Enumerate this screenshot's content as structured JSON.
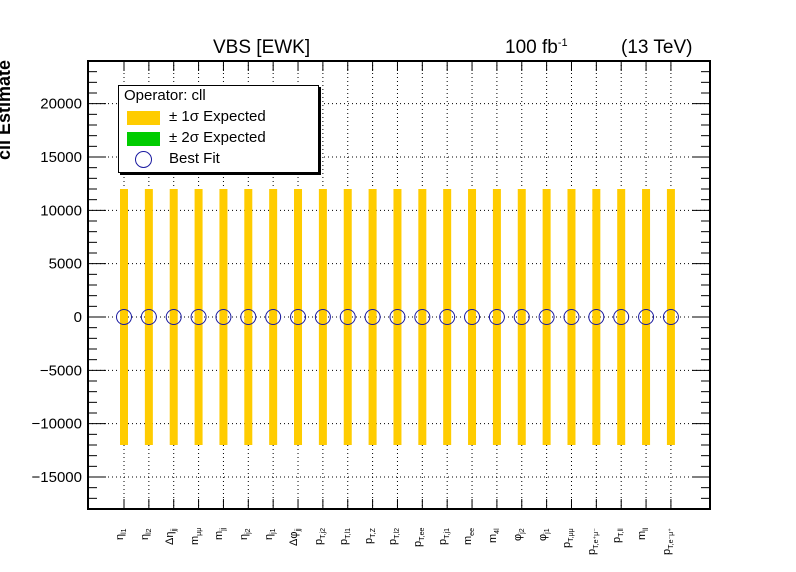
{
  "header": {
    "title_left": "VBS [EWK]",
    "lumi_value": "100 fb",
    "lumi_exp": "-1",
    "energy": "(13 TeV)"
  },
  "legend": {
    "title": "Operator: cll",
    "items": [
      {
        "label": "± 1σ Expected",
        "color": "#ffcc00"
      },
      {
        "label": "± 2σ Expected",
        "color": "#00cc00"
      },
      {
        "label": "Best Fit",
        "color": "#1a1aa0"
      }
    ]
  },
  "chart_data": {
    "type": "scatter",
    "title": "VBS [EWK]",
    "ylabel": "cll Estimate",
    "xlabel": "",
    "ylim": [
      -18000,
      24000
    ],
    "yticks": [
      -15000,
      -10000,
      -5000,
      0,
      5000,
      10000,
      15000,
      20000
    ],
    "ytick_labels": [
      "−15000",
      "−10000",
      "−5000",
      "0",
      "5000",
      "10000",
      "15000",
      "20000"
    ],
    "grid": true,
    "legend_position": "top-left",
    "categories": [
      {
        "main": "η",
        "sub": "l1"
      },
      {
        "main": "η",
        "sub": "l2"
      },
      {
        "main": "Δη",
        "sub": "jj"
      },
      {
        "main": "m",
        "sub": "μμ"
      },
      {
        "main": "m",
        "sub": "jj"
      },
      {
        "main": "η",
        "sub": "j2"
      },
      {
        "main": "η",
        "sub": "j1"
      },
      {
        "main": "Δφ",
        "sub": "jj"
      },
      {
        "main": "p",
        "sub": "T,j2"
      },
      {
        "main": "p",
        "sub": "T,l1"
      },
      {
        "main": "p",
        "sub": "T,Z"
      },
      {
        "main": "p",
        "sub": "T,l2"
      },
      {
        "main": "p",
        "sub": "T,ee"
      },
      {
        "main": "p",
        "sub": "T,j1"
      },
      {
        "main": "m",
        "sub": "ee"
      },
      {
        "main": "m",
        "sub": "4l"
      },
      {
        "main": "φ",
        "sub": "j2"
      },
      {
        "main": "φ",
        "sub": "j1"
      },
      {
        "main": "p",
        "sub": "T,μμ"
      },
      {
        "main": "p",
        "sub": "T,e⁺μ⁻"
      },
      {
        "main": "p",
        "sub": "T,ll"
      },
      {
        "main": "m",
        "sub": "ll"
      },
      {
        "main": "p",
        "sub": "T,e⁻μ⁺"
      }
    ],
    "series": [
      {
        "name": "Best Fit",
        "values": [
          0,
          0,
          0,
          0,
          0,
          0,
          0,
          0,
          0,
          0,
          0,
          0,
          0,
          0,
          0,
          0,
          0,
          0,
          0,
          0,
          0,
          0,
          0
        ]
      },
      {
        "name": "± 1σ Expected",
        "low": [
          -12000,
          -12000,
          -12000,
          -12000,
          -12000,
          -12000,
          -12000,
          -12000,
          -12000,
          -12000,
          -12000,
          -12000,
          -12000,
          -12000,
          -12000,
          -12000,
          -12000,
          -12000,
          -12000,
          -12000,
          -12000,
          -12000,
          -12000
        ],
        "high": [
          12000,
          12000,
          12000,
          12000,
          12000,
          12000,
          12000,
          12000,
          12000,
          12000,
          12000,
          12000,
          12000,
          12000,
          12000,
          12000,
          12000,
          12000,
          12000,
          12000,
          12000,
          12000,
          12000
        ]
      }
    ]
  }
}
